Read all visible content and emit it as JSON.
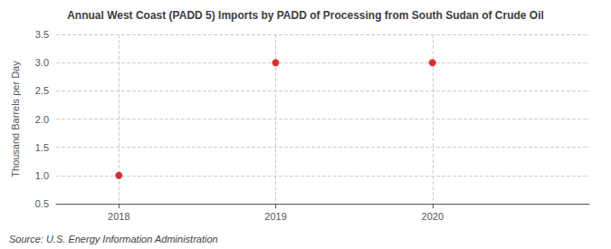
{
  "chart_data": {
    "type": "scatter",
    "title": "Annual West Coast (PADD 5) Imports by PADD of Processing from South Sudan of Crude Oil",
    "ylabel": "Thousand Barrels per Day",
    "annotation": "Source: U.S. Energy Information Administration",
    "x": [
      2018,
      2019,
      2020
    ],
    "values": [
      1.0,
      3.0,
      3.0
    ],
    "color": "#cc0000",
    "marker": "circle",
    "xlim": [
      2017.6,
      2021.0
    ],
    "xticks": [
      2018,
      2019,
      2020
    ],
    "ylim": [
      0.5,
      3.5
    ],
    "yticks": [
      0.5,
      {
        "value": 1,
        "label": "1.0"
      },
      1.5,
      {
        "value": 2,
        "label": "2.0"
      },
      2.5,
      {
        "value": 3,
        "label": "3.0"
      },
      3.5
    ],
    "grid": true
  }
}
